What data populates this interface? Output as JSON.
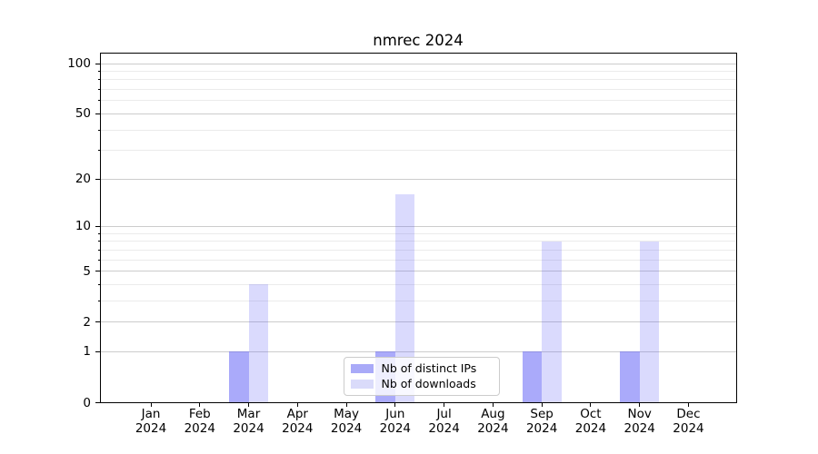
{
  "title": "nmrec 2024",
  "legend": {
    "items": [
      {
        "label": "Nb of distinct IPs",
        "swatch": "#a9aaf8"
      },
      {
        "label": "Nb of downloads",
        "swatch": "#dadbfa"
      }
    ]
  },
  "chart_data": {
    "type": "bar",
    "title": "nmrec 2024",
    "categories": [
      "Jan 2024",
      "Feb 2024",
      "Mar 2024",
      "Apr 2024",
      "May 2024",
      "Jun 2024",
      "Jul 2024",
      "Aug 2024",
      "Sep 2024",
      "Oct 2024",
      "Nov 2024",
      "Dec 2024"
    ],
    "series": [
      {
        "name": "Nb of distinct IPs",
        "values": [
          0,
          0,
          1,
          0,
          0,
          1,
          0,
          0,
          1,
          0,
          1,
          0
        ],
        "color": "#5555f5",
        "fill_alpha": 0.5,
        "rendered_color": "#aaaafa"
      },
      {
        "name": "Nb of downloads",
        "values": [
          0,
          0,
          4,
          0,
          0,
          16,
          0,
          0,
          8,
          0,
          8,
          0
        ],
        "color": "#5555f5",
        "fill_alpha": 0.22,
        "rendered_color": "#dadafd"
      }
    ],
    "xlabel": "",
    "ylabel": "",
    "yscale": "log1p",
    "ylim": [
      0,
      116
    ],
    "y_major_ticks": [
      0,
      1,
      2,
      5,
      10,
      20,
      50,
      100
    ],
    "y_minor_ticks": [
      3,
      4,
      6,
      7,
      8,
      9,
      30,
      40,
      60,
      70,
      80,
      90
    ],
    "grid": "both",
    "legend_position": "inside-bottom-center",
    "grid_major_color": "#cccccc",
    "grid_minor_color": "#ebebeb"
  }
}
